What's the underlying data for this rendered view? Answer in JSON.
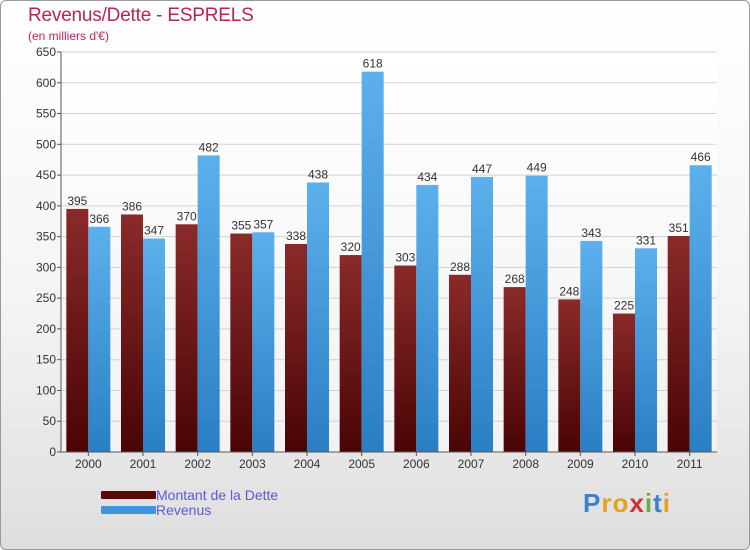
{
  "header": {
    "title": "Revenus/Dette - ESPRELS",
    "subtitle": "(en milliers d'€)"
  },
  "colors": {
    "title": "#b8245a",
    "debt": "#7a1a1a",
    "revenue": "#4aa0e0",
    "grid": "#d0d0d0",
    "legend_text": "#5a5ad8"
  },
  "legend": {
    "items": [
      {
        "label": "Montant de la Dette",
        "color": "#6b0f0f"
      },
      {
        "label": "Revenus",
        "color": "#3d95dc"
      }
    ]
  },
  "logo": {
    "text": "Proxiti"
  },
  "chart_data": {
    "type": "bar",
    "title": "Revenus/Dette - ESPRELS",
    "subtitle": "(en milliers d'€)",
    "categories": [
      "2000",
      "2001",
      "2002",
      "2003",
      "2004",
      "2005",
      "2006",
      "2007",
      "2008",
      "2009",
      "2010",
      "2011"
    ],
    "series": [
      {
        "name": "Montant de la Dette",
        "values": [
          395,
          386,
          370,
          355,
          338,
          320,
          303,
          288,
          268,
          248,
          225,
          351
        ]
      },
      {
        "name": "Revenus",
        "values": [
          366,
          347,
          482,
          357,
          438,
          618,
          434,
          447,
          449,
          343,
          331,
          466
        ]
      }
    ],
    "ylim": [
      0,
      650
    ],
    "yticks": [
      0,
      50,
      100,
      150,
      200,
      250,
      300,
      350,
      400,
      450,
      500,
      550,
      600,
      650
    ],
    "grid": true,
    "legend_position": "bottom-left",
    "xlabel": "",
    "ylabel": ""
  }
}
